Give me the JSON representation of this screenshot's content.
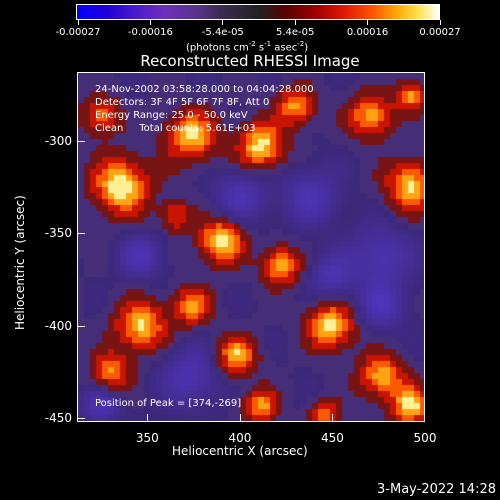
{
  "colorbar": {
    "ticks": [
      "-0.00027",
      "-0.00016",
      "-5.4e-05",
      "5.4e-05",
      "0.00016",
      "0.00027"
    ],
    "units": {
      "prefix": "(photons cm",
      "exp1": "-2",
      "mid1": " s",
      "exp2": "-1",
      "mid2": " asec",
      "exp3": "-2",
      "suffix": ")"
    }
  },
  "title": "Reconstructed RHESSI Image",
  "info": {
    "line1": "24-Nov-2002 03:58:28.000 to 04:04:28.000",
    "line2": "Detectors: 3F 4F 5F 6F 7F 8F, Att 0",
    "line3": "Energy Range: 25.0 - 50.0 keV",
    "line4": "Clean     Total counts: 5.61E+03",
    "peak": "Position of Peak = [374,-269]"
  },
  "axes": {
    "x_label": "Heliocentric X (arcsec)",
    "y_label": "Heliocentric Y (arcsec)",
    "x_range": [
      312,
      500
    ],
    "y_range": [
      -452,
      -263
    ],
    "x_ticks": [
      "350",
      "400",
      "450",
      "500"
    ],
    "y_ticks": [
      "-300",
      "-350",
      "-400",
      "-450"
    ]
  },
  "timestamp": "3-May-2022 14:28"
}
